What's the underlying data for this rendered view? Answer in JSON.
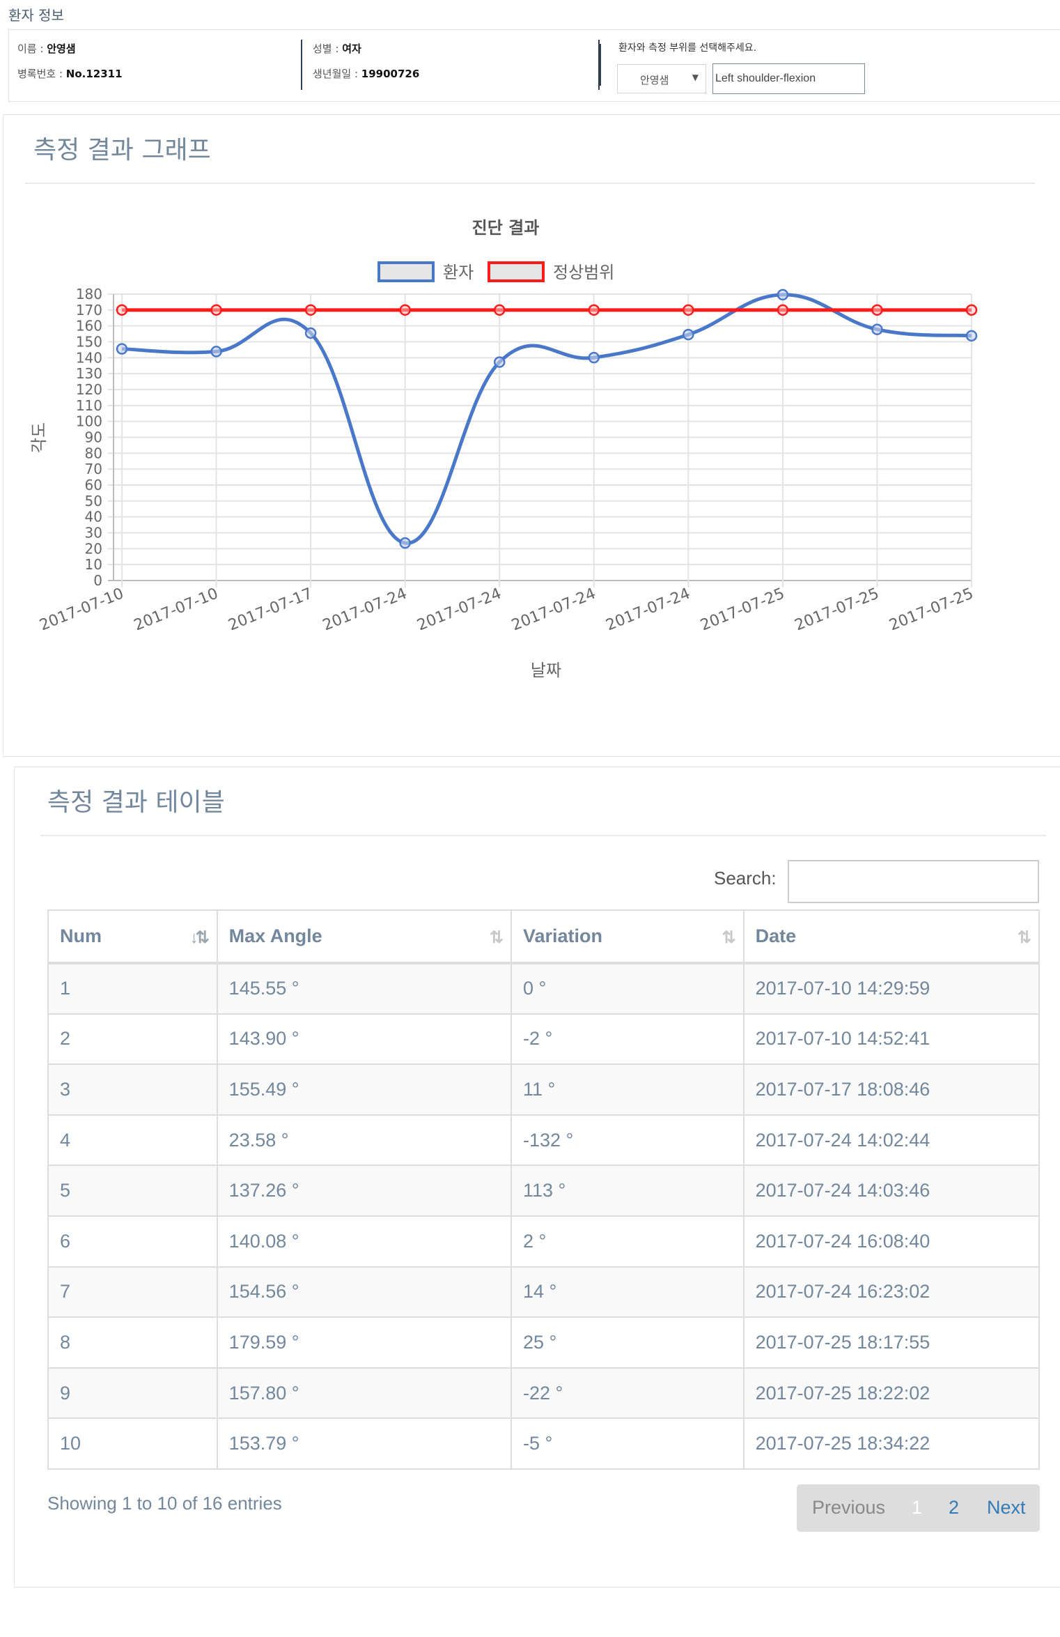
{
  "header": {
    "title": "환자 정보"
  },
  "patient": {
    "name_label": "이름 : ",
    "name": "안영샘",
    "record_label": "병록번호 : ",
    "record": "No.12311",
    "gender_label": "성별 : ",
    "gender": "여자",
    "birth_label": "생년월일 : ",
    "birth": "19900726",
    "prompt": "환자와 측정 부위를 선택해주세요.",
    "select_value": "안영샘",
    "part_value": "Left shoulder-flexion"
  },
  "graph_panel": {
    "title": "측정 결과 그래프"
  },
  "chart_data": {
    "type": "line",
    "title": "진단 결과",
    "xlabel": "날짜",
    "ylabel": "각도",
    "categories": [
      "2017-07-10",
      "2017-07-10",
      "2017-07-17",
      "2017-07-24",
      "2017-07-24",
      "2017-07-24",
      "2017-07-24",
      "2017-07-25",
      "2017-07-25",
      "2017-07-25"
    ],
    "ylim": [
      0,
      180
    ],
    "yticks": [
      0,
      10,
      20,
      30,
      40,
      50,
      60,
      70,
      80,
      90,
      100,
      110,
      120,
      130,
      140,
      150,
      160,
      170,
      180
    ],
    "grid": true,
    "legend_position": "top",
    "series": [
      {
        "name": "환자",
        "color": "#4a78c8",
        "smooth": true,
        "values": [
          145.55,
          143.9,
          155.49,
          23.58,
          137.26,
          140.08,
          154.56,
          179.59,
          157.8,
          153.79
        ]
      },
      {
        "name": "정상범위",
        "color": "#ff1a1a",
        "smooth": false,
        "values": [
          170,
          170,
          170,
          170,
          170,
          170,
          170,
          170,
          170,
          170
        ]
      }
    ]
  },
  "table_panel": {
    "title": "측정 결과 테이블"
  },
  "search": {
    "label": "Search:",
    "value": ""
  },
  "table": {
    "headers": [
      "Num",
      "Max Angle",
      "Variation",
      "Date"
    ],
    "rows": [
      [
        "1",
        "145.55 °",
        "0 °",
        "2017-07-10 14:29:59"
      ],
      [
        "2",
        "143.90 °",
        "-2 °",
        "2017-07-10 14:52:41"
      ],
      [
        "3",
        "155.49 °",
        "11 °",
        "2017-07-17 18:08:46"
      ],
      [
        "4",
        "23.58 °",
        "-132 °",
        "2017-07-24 14:02:44"
      ],
      [
        "5",
        "137.26 °",
        "113 °",
        "2017-07-24 14:03:46"
      ],
      [
        "6",
        "140.08 °",
        "2 °",
        "2017-07-24 16:08:40"
      ],
      [
        "7",
        "154.56 °",
        "14 °",
        "2017-07-24 16:23:02"
      ],
      [
        "8",
        "179.59 °",
        "25 °",
        "2017-07-25 18:17:55"
      ],
      [
        "9",
        "157.80 °",
        "-22 °",
        "2017-07-25 18:22:02"
      ],
      [
        "10",
        "153.79 °",
        "-5 °",
        "2017-07-25 18:34:22"
      ]
    ]
  },
  "footer": {
    "showing": "Showing 1 to 10 of 16 entries",
    "previous": "Previous",
    "page1": "1",
    "page2": "2",
    "next": "Next"
  }
}
